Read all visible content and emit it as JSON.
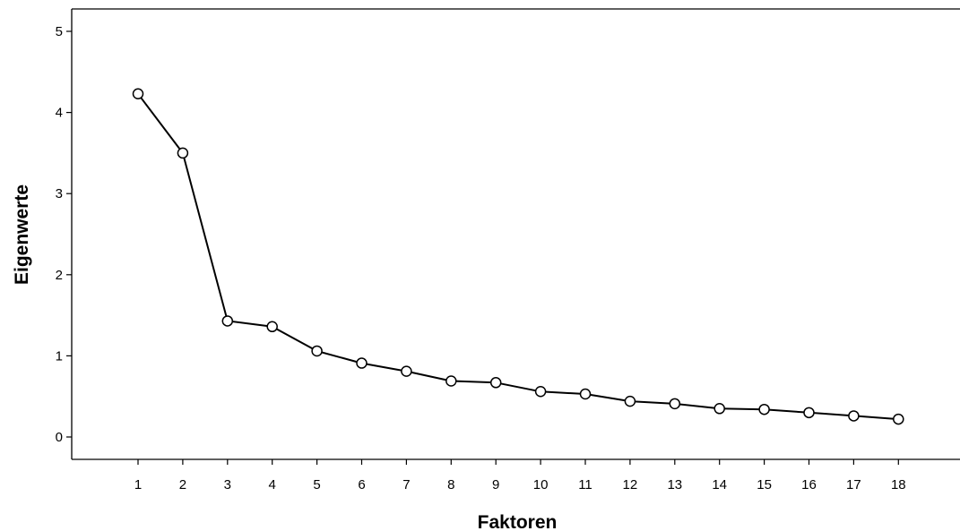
{
  "chart_data": {
    "type": "line",
    "title": "",
    "xlabel": "Faktoren",
    "ylabel": "Eigenwerte",
    "x": [
      1,
      2,
      3,
      4,
      5,
      6,
      7,
      8,
      9,
      10,
      11,
      12,
      13,
      14,
      15,
      16,
      17,
      18
    ],
    "x_tick_labels": [
      "1",
      "2",
      "3",
      "4",
      "5",
      "6",
      "7",
      "8",
      "9",
      "10",
      "11",
      "12",
      "13",
      "14",
      "15",
      "16",
      "17",
      "18"
    ],
    "y_tick_labels": [
      "0",
      "1",
      "2",
      "3",
      "4",
      "5"
    ],
    "series": [
      {
        "values": [
          4.23,
          3.5,
          1.43,
          1.36,
          1.06,
          0.91,
          0.81,
          0.69,
          0.67,
          0.56,
          0.53,
          0.44,
          0.41,
          0.35,
          0.34,
          0.3,
          0.26,
          0.22
        ],
        "marker": "circle",
        "color": "#000000"
      }
    ],
    "ylim": [
      0,
      5
    ],
    "grid": false,
    "legend": "none"
  }
}
